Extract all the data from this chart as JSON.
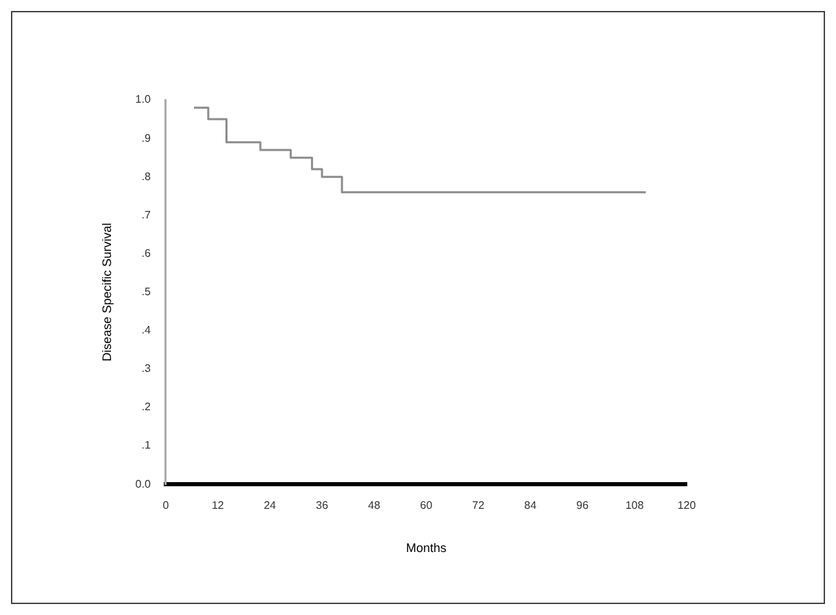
{
  "chart_data": {
    "type": "step",
    "xlabel": "Months",
    "ylabel": "Disease Specific Survival",
    "x": [
      6.5,
      9.8,
      14,
      21.8,
      28.8,
      33.7,
      36,
      40.6,
      110.6
    ],
    "series": [
      {
        "color": "#8c8c8c",
        "values": [
          0.98,
          0.95,
          0.89,
          0.87,
          0.85,
          0.82,
          0.8,
          0.76,
          0.76
        ]
      }
    ],
    "xlim": [
      0,
      120
    ],
    "xticks": [
      0,
      12,
      24,
      36,
      48,
      60,
      72,
      84,
      96,
      108,
      120
    ],
    "ylim": [
      0,
      1
    ],
    "yticks": [
      {
        "value": 0,
        "label": "0.0"
      },
      {
        "value": 0.1,
        "label": ".1"
      },
      {
        "value": 0.2,
        "label": ".2"
      },
      {
        "value": 0.3,
        "label": ".3"
      },
      {
        "value": 0.4,
        "label": ".4"
      },
      {
        "value": 0.5,
        "label": ".5"
      },
      {
        "value": 0.6,
        "label": ".6"
      },
      {
        "value": 0.7,
        "label": ".7"
      },
      {
        "value": 0.8,
        "label": ".8"
      },
      {
        "value": 0.9,
        "label": ".9"
      },
      {
        "value": 1,
        "label": "1.0"
      }
    ],
    "grid": false,
    "legend": false,
    "marker": "none"
  }
}
